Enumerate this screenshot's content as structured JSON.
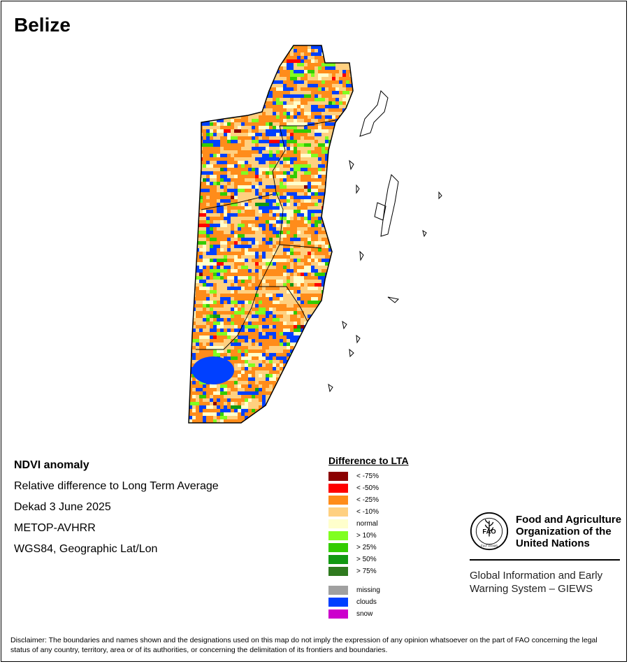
{
  "title": "Belize",
  "info": {
    "lines": [
      "NDVI anomaly",
      "Relative difference to Long Term Average",
      "Dekad 3 June 2025",
      "METOP-AVHRR",
      "WGS84, Geographic Lat/Lon"
    ]
  },
  "legend": {
    "heading": "Difference to LTA",
    "items": [
      {
        "label": "< -75%",
        "color": "#8b0000"
      },
      {
        "label": "< -50%",
        "color": "#ff0000"
      },
      {
        "label": "< -25%",
        "color": "#ff8c1a"
      },
      {
        "label": "< -10%",
        "color": "#ffd080"
      },
      {
        "label": "normal",
        "color": "#ffffcc"
      },
      {
        "label": "> 10%",
        "color": "#80ff20"
      },
      {
        "label": "> 25%",
        "color": "#33cc00"
      },
      {
        "label": "> 50%",
        "color": "#129912"
      },
      {
        "label": "> 75%",
        "color": "#2f7a1f"
      }
    ],
    "extra": [
      {
        "label": "missing",
        "color": "#a0a0a0"
      },
      {
        "label": "clouds",
        "color": "#0040ff"
      },
      {
        "label": "snow",
        "color": "#cc00cc"
      }
    ]
  },
  "logo": {
    "emblem_letters": "FAO",
    "motto": "FIAT PANIS",
    "org_lines": [
      "Food and Agriculture",
      "Organization of the",
      "United Nations"
    ],
    "system_lines": [
      "Global Information and Early",
      "Warning System – GIEWS"
    ]
  },
  "disclaimer": "Disclaimer: The boundaries and names shown and the designations used on this map do not imply the expression of any opinion whatsoever on the part of FAO concerning the legal status of any country, territory, area or of its authorities, or concerning the delimitation of its frontiers and boundaries."
}
